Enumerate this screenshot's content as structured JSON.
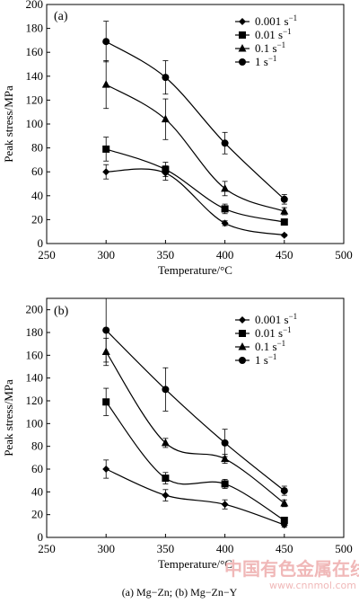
{
  "chart_data": [
    {
      "type": "line",
      "panel_label": "(a)",
      "xlabel": "Temperature/°C",
      "ylabel": "Peak stress/MPa",
      "xlim": [
        250,
        500
      ],
      "ylim": [
        0,
        200
      ],
      "xticks": [
        "250",
        "300",
        "350",
        "400",
        "450",
        "500"
      ],
      "yticks": [
        "0",
        "20",
        "40",
        "60",
        "80",
        "100",
        "120",
        "140",
        "160",
        "180",
        "200"
      ],
      "x": [
        300,
        350,
        400,
        450
      ],
      "legend_position": "top-right",
      "series": [
        {
          "name": "0.001 s",
          "sup": "−1",
          "marker": "diamond",
          "values": [
            60,
            59,
            17,
            7
          ],
          "err": [
            6,
            6,
            2,
            1
          ]
        },
        {
          "name": "0.01 s",
          "sup": "−1",
          "marker": "square",
          "values": [
            79,
            62,
            29,
            18
          ],
          "err": [
            10,
            6,
            4,
            2
          ]
        },
        {
          "name": "0.1 s",
          "sup": "−1",
          "marker": "triangle",
          "values": [
            133,
            104,
            46,
            27
          ],
          "err": [
            20,
            17,
            6,
            3
          ]
        },
        {
          "name": "1 s",
          "sup": "−1",
          "marker": "circle",
          "values": [
            169,
            139,
            84,
            37
          ],
          "err": [
            17,
            14,
            9,
            4
          ]
        }
      ]
    },
    {
      "type": "line",
      "panel_label": "(b)",
      "xlabel": "Temperature/°C",
      "ylabel": "Peak stress/MPa",
      "xlim": [
        250,
        500
      ],
      "ylim": [
        0,
        210
      ],
      "xticks": [
        "250",
        "300",
        "350",
        "400",
        "450",
        "500"
      ],
      "yticks": [
        "0",
        "20",
        "40",
        "60",
        "80",
        "100",
        "120",
        "140",
        "160",
        "180",
        "200"
      ],
      "x": [
        300,
        350,
        400,
        450
      ],
      "legend_position": "top-right",
      "series": [
        {
          "name": "0.001 s",
          "sup": "−1",
          "marker": "diamond",
          "values": [
            60,
            37,
            29,
            11
          ],
          "err": [
            8,
            5,
            4,
            2
          ]
        },
        {
          "name": "0.01 s",
          "sup": "−1",
          "marker": "square",
          "values": [
            119,
            52,
            47,
            15
          ],
          "err": [
            12,
            5,
            4,
            2
          ]
        },
        {
          "name": "0.1 s",
          "sup": "−1",
          "marker": "triangle",
          "values": [
            163,
            83,
            69,
            30
          ],
          "err": [
            12,
            4,
            4,
            3
          ]
        },
        {
          "name": "1 s",
          "sup": "−1",
          "marker": "circle",
          "values": [
            182,
            130,
            83,
            41
          ],
          "err": [
            28,
            19,
            12,
            4
          ]
        }
      ]
    }
  ],
  "caption": "(a) Mg−Zn; (b) Mg−Zn−Y",
  "watermark": {
    "text": "中国有色金属在线",
    "url": "www.cnnmol.com"
  }
}
